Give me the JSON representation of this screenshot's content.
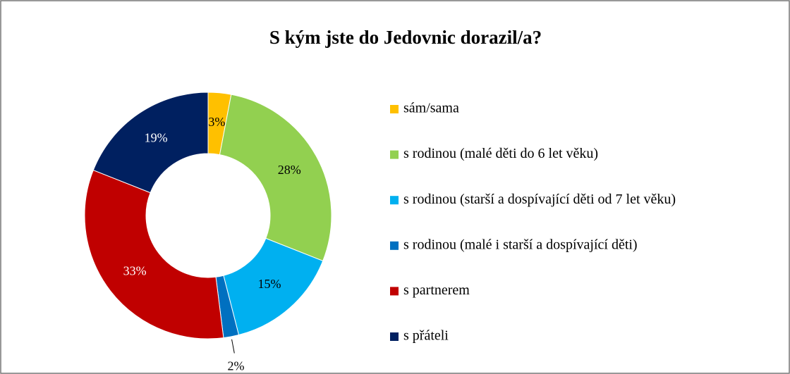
{
  "chart_data": {
    "type": "doughnut",
    "title": "S kým jste do Jedovnic dorazil/a?",
    "categories": [
      "sám/sama",
      "s rodinou (malé děti do 6 let věku)",
      "s rodinou (starší a dospívající děti od 7 let věku)",
      "s rodinou (malé i starší a dospívající děti)",
      "s partnerem",
      "s přáteli"
    ],
    "values": [
      3,
      28,
      15,
      2,
      33,
      19
    ],
    "value_labels": [
      "3%",
      "28%",
      "15%",
      "2%",
      "33%",
      "19%"
    ],
    "colors": [
      "#ffc000",
      "#92d050",
      "#00b0f0",
      "#0070c0",
      "#c00000",
      "#002060"
    ],
    "legend": "right"
  }
}
